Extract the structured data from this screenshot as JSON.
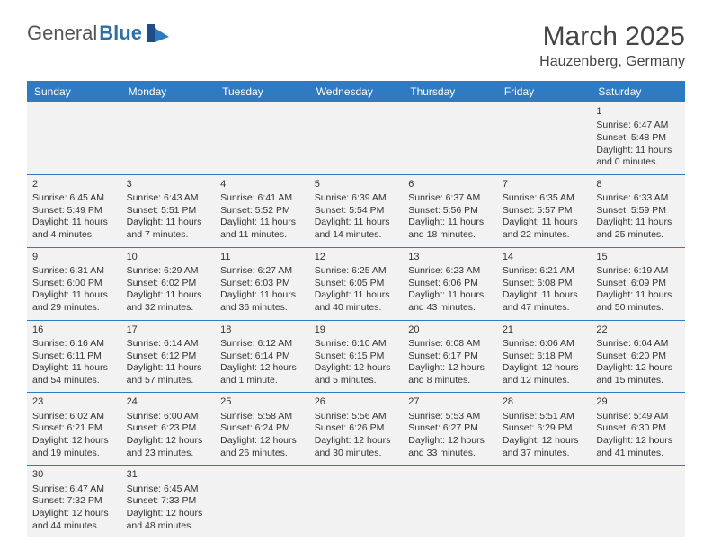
{
  "brand": {
    "part1": "General",
    "part2": "Blue"
  },
  "title": {
    "month": "March 2025",
    "location": "Hauzenberg, Germany"
  },
  "colors": {
    "header_bg": "#2f7ac0",
    "header_fg": "#ffffff",
    "cell_bg": "#f2f2f2",
    "rule": "#2f7ac0",
    "brand_blue": "#2f6fa8",
    "brand_grey": "#555555",
    "text": "#333333"
  },
  "weekdays": [
    "Sunday",
    "Monday",
    "Tuesday",
    "Wednesday",
    "Thursday",
    "Friday",
    "Saturday"
  ],
  "weeks": [
    [
      null,
      null,
      null,
      null,
      null,
      null,
      {
        "n": "1",
        "rise": "Sunrise: 6:47 AM",
        "set": "Sunset: 5:48 PM",
        "day": "Daylight: 11 hours and 0 minutes."
      }
    ],
    [
      {
        "n": "2",
        "rise": "Sunrise: 6:45 AM",
        "set": "Sunset: 5:49 PM",
        "day": "Daylight: 11 hours and 4 minutes."
      },
      {
        "n": "3",
        "rise": "Sunrise: 6:43 AM",
        "set": "Sunset: 5:51 PM",
        "day": "Daylight: 11 hours and 7 minutes."
      },
      {
        "n": "4",
        "rise": "Sunrise: 6:41 AM",
        "set": "Sunset: 5:52 PM",
        "day": "Daylight: 11 hours and 11 minutes."
      },
      {
        "n": "5",
        "rise": "Sunrise: 6:39 AM",
        "set": "Sunset: 5:54 PM",
        "day": "Daylight: 11 hours and 14 minutes."
      },
      {
        "n": "6",
        "rise": "Sunrise: 6:37 AM",
        "set": "Sunset: 5:56 PM",
        "day": "Daylight: 11 hours and 18 minutes."
      },
      {
        "n": "7",
        "rise": "Sunrise: 6:35 AM",
        "set": "Sunset: 5:57 PM",
        "day": "Daylight: 11 hours and 22 minutes."
      },
      {
        "n": "8",
        "rise": "Sunrise: 6:33 AM",
        "set": "Sunset: 5:59 PM",
        "day": "Daylight: 11 hours and 25 minutes."
      }
    ],
    [
      {
        "n": "9",
        "rise": "Sunrise: 6:31 AM",
        "set": "Sunset: 6:00 PM",
        "day": "Daylight: 11 hours and 29 minutes."
      },
      {
        "n": "10",
        "rise": "Sunrise: 6:29 AM",
        "set": "Sunset: 6:02 PM",
        "day": "Daylight: 11 hours and 32 minutes."
      },
      {
        "n": "11",
        "rise": "Sunrise: 6:27 AM",
        "set": "Sunset: 6:03 PM",
        "day": "Daylight: 11 hours and 36 minutes."
      },
      {
        "n": "12",
        "rise": "Sunrise: 6:25 AM",
        "set": "Sunset: 6:05 PM",
        "day": "Daylight: 11 hours and 40 minutes."
      },
      {
        "n": "13",
        "rise": "Sunrise: 6:23 AM",
        "set": "Sunset: 6:06 PM",
        "day": "Daylight: 11 hours and 43 minutes."
      },
      {
        "n": "14",
        "rise": "Sunrise: 6:21 AM",
        "set": "Sunset: 6:08 PM",
        "day": "Daylight: 11 hours and 47 minutes."
      },
      {
        "n": "15",
        "rise": "Sunrise: 6:19 AM",
        "set": "Sunset: 6:09 PM",
        "day": "Daylight: 11 hours and 50 minutes."
      }
    ],
    [
      {
        "n": "16",
        "rise": "Sunrise: 6:16 AM",
        "set": "Sunset: 6:11 PM",
        "day": "Daylight: 11 hours and 54 minutes."
      },
      {
        "n": "17",
        "rise": "Sunrise: 6:14 AM",
        "set": "Sunset: 6:12 PM",
        "day": "Daylight: 11 hours and 57 minutes."
      },
      {
        "n": "18",
        "rise": "Sunrise: 6:12 AM",
        "set": "Sunset: 6:14 PM",
        "day": "Daylight: 12 hours and 1 minute."
      },
      {
        "n": "19",
        "rise": "Sunrise: 6:10 AM",
        "set": "Sunset: 6:15 PM",
        "day": "Daylight: 12 hours and 5 minutes."
      },
      {
        "n": "20",
        "rise": "Sunrise: 6:08 AM",
        "set": "Sunset: 6:17 PM",
        "day": "Daylight: 12 hours and 8 minutes."
      },
      {
        "n": "21",
        "rise": "Sunrise: 6:06 AM",
        "set": "Sunset: 6:18 PM",
        "day": "Daylight: 12 hours and 12 minutes."
      },
      {
        "n": "22",
        "rise": "Sunrise: 6:04 AM",
        "set": "Sunset: 6:20 PM",
        "day": "Daylight: 12 hours and 15 minutes."
      }
    ],
    [
      {
        "n": "23",
        "rise": "Sunrise: 6:02 AM",
        "set": "Sunset: 6:21 PM",
        "day": "Daylight: 12 hours and 19 minutes."
      },
      {
        "n": "24",
        "rise": "Sunrise: 6:00 AM",
        "set": "Sunset: 6:23 PM",
        "day": "Daylight: 12 hours and 23 minutes."
      },
      {
        "n": "25",
        "rise": "Sunrise: 5:58 AM",
        "set": "Sunset: 6:24 PM",
        "day": "Daylight: 12 hours and 26 minutes."
      },
      {
        "n": "26",
        "rise": "Sunrise: 5:56 AM",
        "set": "Sunset: 6:26 PM",
        "day": "Daylight: 12 hours and 30 minutes."
      },
      {
        "n": "27",
        "rise": "Sunrise: 5:53 AM",
        "set": "Sunset: 6:27 PM",
        "day": "Daylight: 12 hours and 33 minutes."
      },
      {
        "n": "28",
        "rise": "Sunrise: 5:51 AM",
        "set": "Sunset: 6:29 PM",
        "day": "Daylight: 12 hours and 37 minutes."
      },
      {
        "n": "29",
        "rise": "Sunrise: 5:49 AM",
        "set": "Sunset: 6:30 PM",
        "day": "Daylight: 12 hours and 41 minutes."
      }
    ],
    [
      {
        "n": "30",
        "rise": "Sunrise: 6:47 AM",
        "set": "Sunset: 7:32 PM",
        "day": "Daylight: 12 hours and 44 minutes."
      },
      {
        "n": "31",
        "rise": "Sunrise: 6:45 AM",
        "set": "Sunset: 7:33 PM",
        "day": "Daylight: 12 hours and 48 minutes."
      },
      null,
      null,
      null,
      null,
      null
    ]
  ]
}
